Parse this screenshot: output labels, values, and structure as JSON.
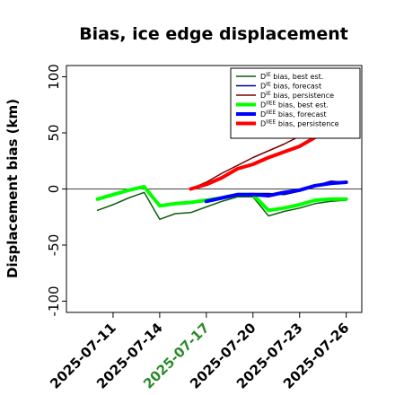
{
  "chart_data": {
    "type": "line",
    "title": "Bias, ice edge displacement",
    "ylabel": "Displacement bias (km)",
    "xlabel": "",
    "ylim": [
      -110,
      110
    ],
    "xlim": [
      "2025-07-08",
      "2025-07-27"
    ],
    "yticks": [
      -100,
      -50,
      0,
      50,
      100
    ],
    "xticks": [
      "2025-07-11",
      "2025-07-14",
      "2025-07-17",
      "2025-07-20",
      "2025-07-23",
      "2025-07-26"
    ],
    "highlight_xtick": "2025-07-17",
    "highlight_color": "#2a8a2a",
    "zero_line": true,
    "legend_position": "top-right",
    "series": [
      {
        "legend_prefix": "D",
        "legend_sup": "IE",
        "legend_suffix": " bias, best est.",
        "color": "#0a5f0a",
        "width": 1.5,
        "x": [
          "2025-07-10",
          "2025-07-11",
          "2025-07-12",
          "2025-07-13",
          "2025-07-14",
          "2025-07-15",
          "2025-07-16",
          "2025-07-17",
          "2025-07-18",
          "2025-07-19",
          "2025-07-20",
          "2025-07-21",
          "2025-07-22",
          "2025-07-23",
          "2025-07-24",
          "2025-07-25",
          "2025-07-26"
        ],
        "y": [
          -19,
          -14,
          -8,
          -3,
          -27,
          -22,
          -21,
          -16,
          -11,
          -7,
          -7,
          -24,
          -20,
          -17,
          -13,
          -11,
          -10
        ]
      },
      {
        "legend_prefix": "D",
        "legend_sup": "IE",
        "legend_suffix": " bias, forecast",
        "color": "#00008b",
        "width": 1.5,
        "x": [
          "2025-07-17",
          "2025-07-18",
          "2025-07-19",
          "2025-07-20",
          "2025-07-21",
          "2025-07-22",
          "2025-07-23",
          "2025-07-24",
          "2025-07-25",
          "2025-07-26"
        ],
        "y": [
          -11,
          -8,
          -5,
          -4,
          -4,
          -5,
          -2,
          3,
          7,
          6
        ]
      },
      {
        "legend_prefix": "D",
        "legend_sup": "IE",
        "legend_suffix": " bias, persistence",
        "color": "#7a0000",
        "width": 1.5,
        "x": [
          "2025-07-16",
          "2025-07-17",
          "2025-07-18",
          "2025-07-19",
          "2025-07-20",
          "2025-07-21",
          "2025-07-22",
          "2025-07-23",
          "2025-07-24"
        ],
        "y": [
          0,
          6,
          14,
          21,
          28,
          34,
          40,
          47,
          54
        ]
      },
      {
        "legend_prefix": "D",
        "legend_sup": "IIEE",
        "legend_suffix": " bias, best est.",
        "color": "#00ff00",
        "width": 4,
        "x": [
          "2025-07-10",
          "2025-07-11",
          "2025-07-12",
          "2025-07-13",
          "2025-07-14",
          "2025-07-15",
          "2025-07-16",
          "2025-07-17",
          "2025-07-18",
          "2025-07-19",
          "2025-07-20",
          "2025-07-21",
          "2025-07-22",
          "2025-07-23",
          "2025-07-24",
          "2025-07-25",
          "2025-07-26"
        ],
        "y": [
          -9,
          -5,
          -1,
          2,
          -15,
          -13,
          -12,
          -10,
          -8,
          -5,
          -5,
          -19,
          -17,
          -14,
          -10,
          -9,
          -9
        ]
      },
      {
        "legend_prefix": "D",
        "legend_sup": "IIEE",
        "legend_suffix": " bias, forecast",
        "color": "#0000ff",
        "width": 4,
        "x": [
          "2025-07-17",
          "2025-07-18",
          "2025-07-19",
          "2025-07-20",
          "2025-07-21",
          "2025-07-22",
          "2025-07-23",
          "2025-07-24",
          "2025-07-25",
          "2025-07-26"
        ],
        "y": [
          -11,
          -8,
          -5,
          -5,
          -6,
          -3,
          -1,
          3,
          5,
          6
        ]
      },
      {
        "legend_prefix": "D",
        "legend_sup": "IIEE",
        "legend_suffix": " bias, persistence",
        "color": "#ff0000",
        "width": 4,
        "x": [
          "2025-07-16",
          "2025-07-17",
          "2025-07-18",
          "2025-07-19",
          "2025-07-20",
          "2025-07-21",
          "2025-07-22",
          "2025-07-23",
          "2025-07-24"
        ],
        "y": [
          0,
          4,
          10,
          18,
          22,
          28,
          33,
          38,
          46
        ]
      }
    ]
  }
}
